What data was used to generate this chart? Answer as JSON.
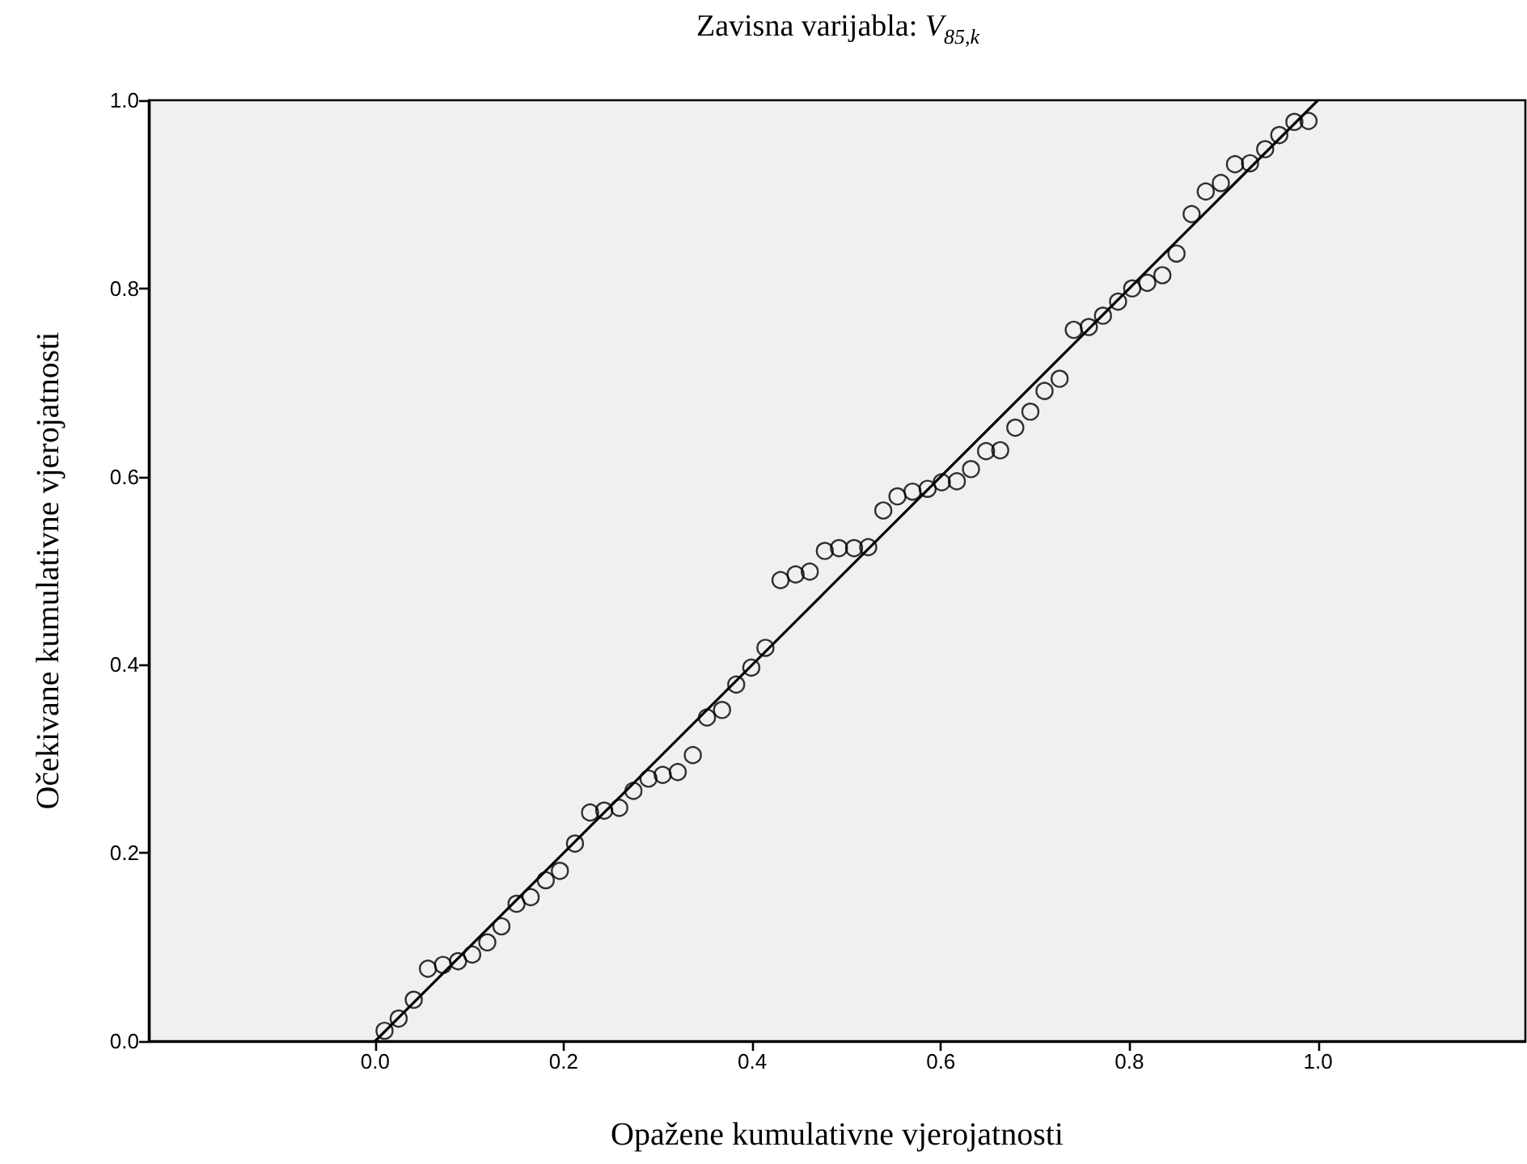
{
  "chart_data": {
    "type": "scatter",
    "title": "Zavisna varijabla: V$_{85,k}$",
    "xlabel": "Opažene kumulativne vjerojatnosti",
    "ylabel": "Očekivane kumulativne vjerojatnosti",
    "xlim": [
      -0.24,
      1.22
    ],
    "xticks": [
      {
        "value": 0,
        "label": "0.0"
      },
      0.2,
      0.4,
      0.6,
      0.8,
      {
        "value": 1,
        "label": "1.0"
      }
    ],
    "ylim": [
      0,
      1
    ],
    "yticks": [
      {
        "value": 0,
        "label": "0.0"
      },
      0.2,
      0.4,
      0.6,
      0.8,
      {
        "value": 1,
        "label": "1.0"
      }
    ],
    "grid": false,
    "marker": "circle",
    "line_style": "solid",
    "series": [
      {
        "color": "#000000",
        "x": [
          0.01,
          0.025,
          0.041,
          0.056,
          0.072,
          0.088,
          0.103,
          0.119,
          0.134,
          0.15,
          0.165,
          0.181,
          0.196,
          0.212,
          0.228,
          0.243,
          0.259,
          0.274,
          0.29,
          0.305,
          0.321,
          0.337,
          0.352,
          0.368,
          0.383,
          0.399,
          0.414,
          0.43,
          0.446,
          0.461,
          0.477,
          0.492,
          0.508,
          0.523,
          0.539,
          0.554,
          0.57,
          0.586,
          0.601,
          0.617,
          0.632,
          0.648,
          0.663,
          0.679,
          0.695,
          0.71,
          0.726,
          0.741,
          0.757,
          0.772,
          0.788,
          0.803,
          0.819,
          0.835,
          0.85,
          0.866,
          0.881,
          0.897,
          0.912,
          0.928,
          0.944,
          0.959,
          0.975,
          0.99
        ],
        "values": [
          0.011,
          0.024,
          0.044,
          0.077,
          0.081,
          0.085,
          0.092,
          0.105,
          0.122,
          0.146,
          0.153,
          0.171,
          0.181,
          0.21,
          0.243,
          0.245,
          0.248,
          0.266,
          0.279,
          0.283,
          0.286,
          0.304,
          0.344,
          0.352,
          0.379,
          0.397,
          0.418,
          0.49,
          0.496,
          0.499,
          0.521,
          0.524,
          0.524,
          0.525,
          0.564,
          0.579,
          0.584,
          0.587,
          0.594,
          0.595,
          0.608,
          0.627,
          0.628,
          0.652,
          0.669,
          0.691,
          0.704,
          0.756,
          0.759,
          0.771,
          0.786,
          0.8,
          0.806,
          0.814,
          0.837,
          0.879,
          0.903,
          0.912,
          0.932,
          0.933,
          0.948,
          0.963,
          0.977,
          0.978
        ]
      },
      {
        "type": "line",
        "color": "#000000",
        "marker": "none",
        "x": [
          0,
          1
        ],
        "values": [
          0,
          1
        ]
      }
    ]
  }
}
